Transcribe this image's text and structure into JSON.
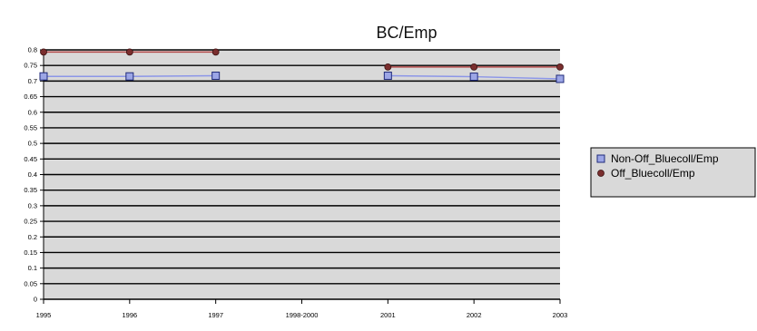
{
  "chart_data": {
    "type": "line",
    "title": "BC/Emp",
    "xlabel": "",
    "ylabel": "",
    "categories": [
      "1995",
      "1996",
      "1997",
      "1998-2000",
      "2001",
      "2002",
      "2003"
    ],
    "ylim": [
      0,
      0.8
    ],
    "yticks": [
      "0",
      "0.05",
      "0.1",
      "0.15",
      "0.2",
      "0.25",
      "0.3",
      "0.35",
      "0.4",
      "0.45",
      "0.5",
      "0.55",
      "0.6",
      "0.65",
      "0.7",
      "0.75",
      "0.8"
    ],
    "grid": true,
    "legend_position": "right",
    "plot_background": "#d9d9d9",
    "series": [
      {
        "name": "Non-Off_Bluecoll/Emp",
        "values": [
          0.715,
          0.715,
          0.717,
          null,
          0.717,
          0.714,
          0.707
        ],
        "color": "#8c96e8",
        "marker": "square",
        "marker_color": "#9ca6e6"
      },
      {
        "name": "Off_Bluecoll/Emp",
        "values": [
          0.793,
          0.793,
          0.793,
          null,
          0.745,
          0.745,
          0.745
        ],
        "color": "#b34a4a",
        "marker": "circle",
        "marker_color": "#7a2e2e"
      }
    ]
  }
}
